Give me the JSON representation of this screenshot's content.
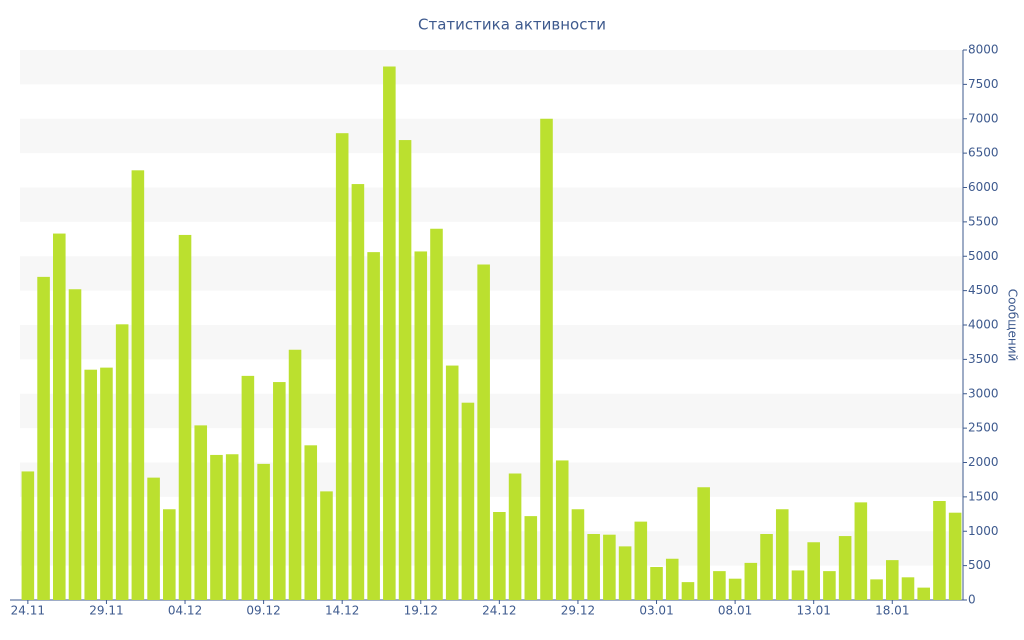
{
  "chart_data": {
    "type": "bar",
    "title": "Статистика активности",
    "y_label": "Сообщений",
    "color": "#bbe02f",
    "categories": [
      "24.11",
      null,
      null,
      null,
      null,
      "29.11",
      null,
      null,
      null,
      null,
      "04.12",
      null,
      null,
      null,
      null,
      "09.12",
      null,
      null,
      null,
      null,
      "14.12",
      null,
      null,
      null,
      null,
      "19.12",
      null,
      null,
      null,
      null,
      "24.12",
      null,
      null,
      null,
      null,
      "29.12",
      null,
      null,
      null,
      null,
      "03.01",
      null,
      null,
      null,
      null,
      "08.01",
      null,
      null,
      null,
      null,
      "13.01",
      null,
      null,
      null,
      null,
      "18.01",
      null,
      null,
      null,
      null
    ],
    "values": [
      1870,
      4700,
      5330,
      4520,
      3350,
      3380,
      4010,
      6250,
      1780,
      1320,
      5310,
      2540,
      2110,
      2120,
      3260,
      1980,
      3170,
      3640,
      2250,
      1580,
      6790,
      6050,
      5060,
      7760,
      6690,
      5070,
      5400,
      3410,
      2870,
      4880,
      1280,
      1840,
      1220,
      7000,
      2030,
      1320,
      960,
      950,
      780,
      1140,
      480,
      600,
      260,
      1640,
      420,
      310,
      540,
      960,
      1320,
      430,
      840,
      420,
      930,
      1420,
      300,
      580,
      330,
      180,
      1440,
      1270
    ],
    "ylim": [
      0,
      8000
    ],
    "yticks": [
      0,
      500,
      1000,
      1500,
      2000,
      2500,
      3000,
      3500,
      4000,
      4500,
      5000,
      5500,
      6000,
      6500,
      7000,
      7500,
      8000
    ],
    "grid": "bands",
    "y_axis_side": "right"
  }
}
